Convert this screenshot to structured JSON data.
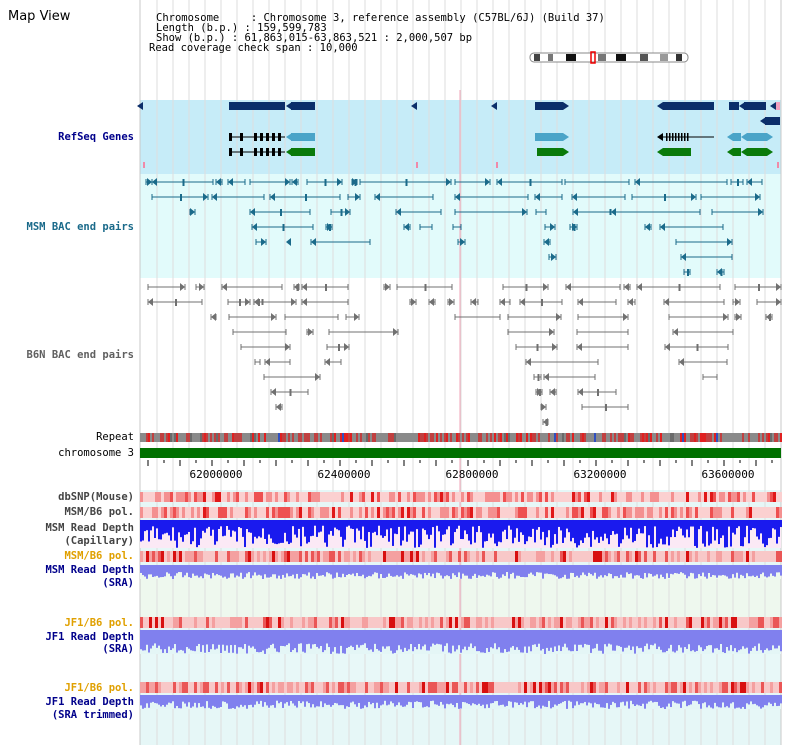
{
  "page_title": "Map View",
  "info": {
    "chromosome": "Chromosome     : Chromosome 3, reference assembly (C57BL/6J) (Build 37)",
    "length": "Length (b.p.) : 159,599,783",
    "show": "Show (b.p.) : 61,863,015-63,863,521 : 2,000,507 bp",
    "coverage": "Read coverage check span : 10,000"
  },
  "tracks": {
    "refseq": "RefSeq Genes",
    "msm_bac": "MSM BAC end pairs",
    "b6n_bac": "B6N BAC end pairs",
    "repeat": "Repeat",
    "chromosome": "chromosome 3",
    "dbsnp": "dbSNP(Mouse)",
    "msm_b6_pol": "MSM/B6 pol.",
    "msm_depth_cap_1": "MSM Read Depth",
    "msm_depth_cap_2": "(Capillary)",
    "msm_b6_pol_sra": "MSM/B6 pol.",
    "msm_depth_sra_1": "MSM Read Depth",
    "msm_depth_sra_2": "(SRA)",
    "jf1_b6_pol": "JF1/B6 pol.",
    "jf1_depth_1": "JF1 Read Depth",
    "jf1_depth_2": "(SRA)",
    "jf1_b6_pol_trim": "JF1/B6 pol.",
    "jf1_trim_1": "JF1 Read Depth",
    "jf1_trim_2": "(SRA trimmed)"
  },
  "axis_ticks": [
    "62000000",
    "62400000",
    "62800000",
    "63200000",
    "63600000"
  ],
  "colors": {
    "refseq_bg": "#c6ecf8",
    "bac_bg": "#e2fbfb",
    "gene_dark": "#0b2e6a",
    "gene_mid": "#4aa4c8",
    "gene_green": "#0a7a0a",
    "msm_bac": "#1a6a8a",
    "b6n_bac": "#707070",
    "chromosome_bar": "#007000",
    "label_navy": "#00008b",
    "label_orange": "#e0a000",
    "depth_blue_dark": "#1a1aee",
    "depth_blue_light": "#8080ee"
  }
}
